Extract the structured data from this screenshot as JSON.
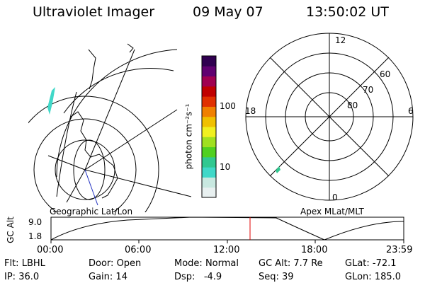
{
  "header": {
    "instrument": "Ultraviolet Imager",
    "date": "09 May 07",
    "time": "13:50:02 UT"
  },
  "colorbar": {
    "unit_label": "photon cm⁻²s⁻¹",
    "ticks": [
      "100",
      "10"
    ],
    "colors": [
      "#e8f0f0",
      "#c8e8e0",
      "#40d8c8",
      "#30c890",
      "#50d020",
      "#a0e020",
      "#f0f020",
      "#f0c000",
      "#f08000",
      "#e03000",
      "#c00000",
      "#a00050",
      "#600070",
      "#300050"
    ]
  },
  "polar": {
    "mlt_labels": [
      "12",
      "18",
      "6",
      "0"
    ],
    "lat_labels": [
      "60",
      "70",
      "80"
    ]
  },
  "map_labels": {
    "geographic": "Geographic Lat/Lon",
    "apex": "Apex MLat/MLT"
  },
  "altitude_plot": {
    "ylabel": "GC Alt",
    "yticks": [
      "9.0",
      "1.8"
    ],
    "xticks": [
      "00:00",
      "06:00",
      "12:00",
      "18:00",
      "23:59"
    ],
    "marker_time": "13:50"
  },
  "status": {
    "flt_label": "Flt:",
    "flt_value": "LBHL",
    "door_label": "Door:",
    "door_value": "Open",
    "mode_label": "Mode:",
    "mode_value": "Normal",
    "gcalt_label": "GC Alt:",
    "gcalt_value": "7.7 Re",
    "glat_label": "GLat:",
    "glat_value": "-72.1",
    "ip_label": "IP:",
    "ip_value": "36.0",
    "gain_label": "Gain:",
    "gain_value": "14",
    "dsp_label": "Dsp:",
    "dsp_value": "-4.9",
    "seq_label": "Seq:",
    "seq_value": "39",
    "glon_label": "GLon:",
    "glon_value": "185.0"
  }
}
